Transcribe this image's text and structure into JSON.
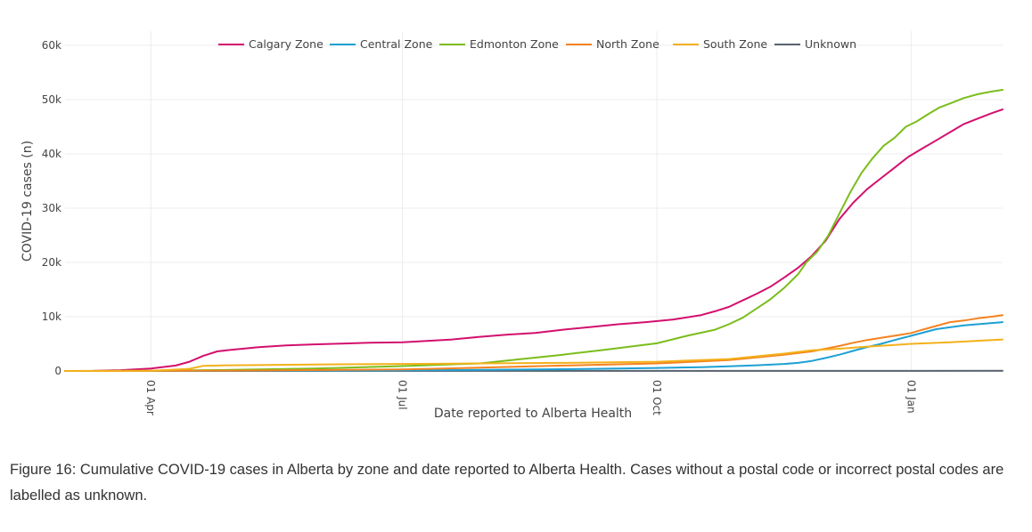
{
  "chart_data": {
    "type": "line",
    "title": "",
    "xlabel": "Date reported to Alberta Health",
    "ylabel": "COVID-19 cases (n)",
    "x_ticks": [
      {
        "label": "01 Apr",
        "day": 31
      },
      {
        "label": "01 Jul",
        "day": 122
      },
      {
        "label": "01 Oct",
        "day": 214
      },
      {
        "label": "01 Jan",
        "day": 306
      }
    ],
    "xlim": [
      0,
      339
    ],
    "x_unit": "days since 2020-03-01",
    "y_ticks": [
      {
        "label": "0",
        "value": 0
      },
      {
        "label": "10k",
        "value": 10000
      },
      {
        "label": "20k",
        "value": 20000
      },
      {
        "label": "30k",
        "value": 30000
      },
      {
        "label": "40k",
        "value": 40000
      },
      {
        "label": "50k",
        "value": 50000
      },
      {
        "label": "60k",
        "value": 60000
      }
    ],
    "ylim": [
      0,
      60000
    ],
    "legend_position": "top",
    "series": [
      {
        "name": "Calgary Zone",
        "color": "#d3106e",
        "x": [
          0,
          10,
          20,
          31,
          40,
          45,
          50,
          55,
          60,
          70,
          80,
          90,
          100,
          110,
          122,
          130,
          140,
          150,
          160,
          170,
          180,
          190,
          200,
          210,
          220,
          230,
          235,
          240,
          245,
          250,
          255,
          260,
          265,
          270,
          275,
          280,
          285,
          290,
          295,
          300,
          305,
          310,
          315,
          320,
          325,
          330,
          335,
          339
        ],
        "y": [
          0,
          20,
          150,
          450,
          1000,
          1700,
          2800,
          3600,
          3900,
          4400,
          4700,
          4900,
          5050,
          5200,
          5300,
          5500,
          5800,
          6300,
          6700,
          7000,
          7600,
          8100,
          8600,
          9000,
          9500,
          10300,
          11000,
          11800,
          13000,
          14200,
          15500,
          17200,
          19000,
          21200,
          24000,
          28000,
          31000,
          33500,
          35500,
          37500,
          39500,
          41000,
          42500,
          44000,
          45500,
          46500,
          47500,
          48200
        ]
      },
      {
        "name": "Central Zone",
        "color": "#1da0d3",
        "x": [
          0,
          31,
          60,
          122,
          150,
          180,
          200,
          214,
          230,
          240,
          250,
          260,
          265,
          270,
          275,
          280,
          285,
          290,
          295,
          300,
          306,
          315,
          325,
          339
        ],
        "y": [
          0,
          5,
          30,
          120,
          200,
          320,
          450,
          560,
          700,
          850,
          1050,
          1300,
          1500,
          1850,
          2400,
          3000,
          3700,
          4400,
          5000,
          5700,
          6500,
          7700,
          8400,
          9000
        ]
      },
      {
        "name": "Edmonton Zone",
        "color": "#7bbd1c",
        "x": [
          0,
          31,
          60,
          90,
          122,
          150,
          165,
          180,
          195,
          214,
          225,
          235,
          240,
          245,
          250,
          255,
          260,
          265,
          268,
          272,
          276,
          280,
          284,
          288,
          292,
          296,
          300,
          304,
          308,
          312,
          316,
          320,
          325,
          330,
          335,
          339
        ],
        "y": [
          0,
          40,
          200,
          450,
          900,
          1400,
          2200,
          3000,
          3900,
          5100,
          6500,
          7600,
          8600,
          9800,
          11500,
          13200,
          15300,
          17800,
          20000,
          22000,
          25000,
          29000,
          33000,
          36500,
          39200,
          41500,
          43000,
          45000,
          46000,
          47300,
          48500,
          49300,
          50300,
          51000,
          51500,
          51800
        ]
      },
      {
        "name": "North Zone",
        "color": "#f5821f",
        "x": [
          0,
          31,
          60,
          122,
          150,
          180,
          214,
          240,
          260,
          270,
          280,
          285,
          290,
          295,
          300,
          306,
          310,
          315,
          320,
          325,
          330,
          335,
          339
        ],
        "y": [
          0,
          10,
          60,
          300,
          600,
          1000,
          1400,
          2000,
          3000,
          3600,
          4600,
          5200,
          5700,
          6100,
          6500,
          7000,
          7600,
          8300,
          9000,
          9300,
          9700,
          10000,
          10300
        ]
      },
      {
        "name": "South Zone",
        "color": "#f3b11b",
        "x": [
          0,
          31,
          45,
          50,
          60,
          90,
          122,
          150,
          180,
          214,
          240,
          260,
          270,
          280,
          290,
          300,
          306,
          320,
          339
        ],
        "y": [
          0,
          50,
          400,
          950,
          1050,
          1200,
          1300,
          1400,
          1500,
          1700,
          2200,
          3200,
          3800,
          4100,
          4500,
          4800,
          5000,
          5300,
          5800
        ]
      },
      {
        "name": "Unknown",
        "color": "#5a6470",
        "x": [
          0,
          100,
          200,
          339
        ],
        "y": [
          0,
          10,
          20,
          30
        ]
      }
    ]
  },
  "caption": "Figure 16: Cumulative COVID-19 cases in Alberta by zone and date reported to Alberta Health. Cases without a postal code or incorrect postal codes are labelled as unknown."
}
